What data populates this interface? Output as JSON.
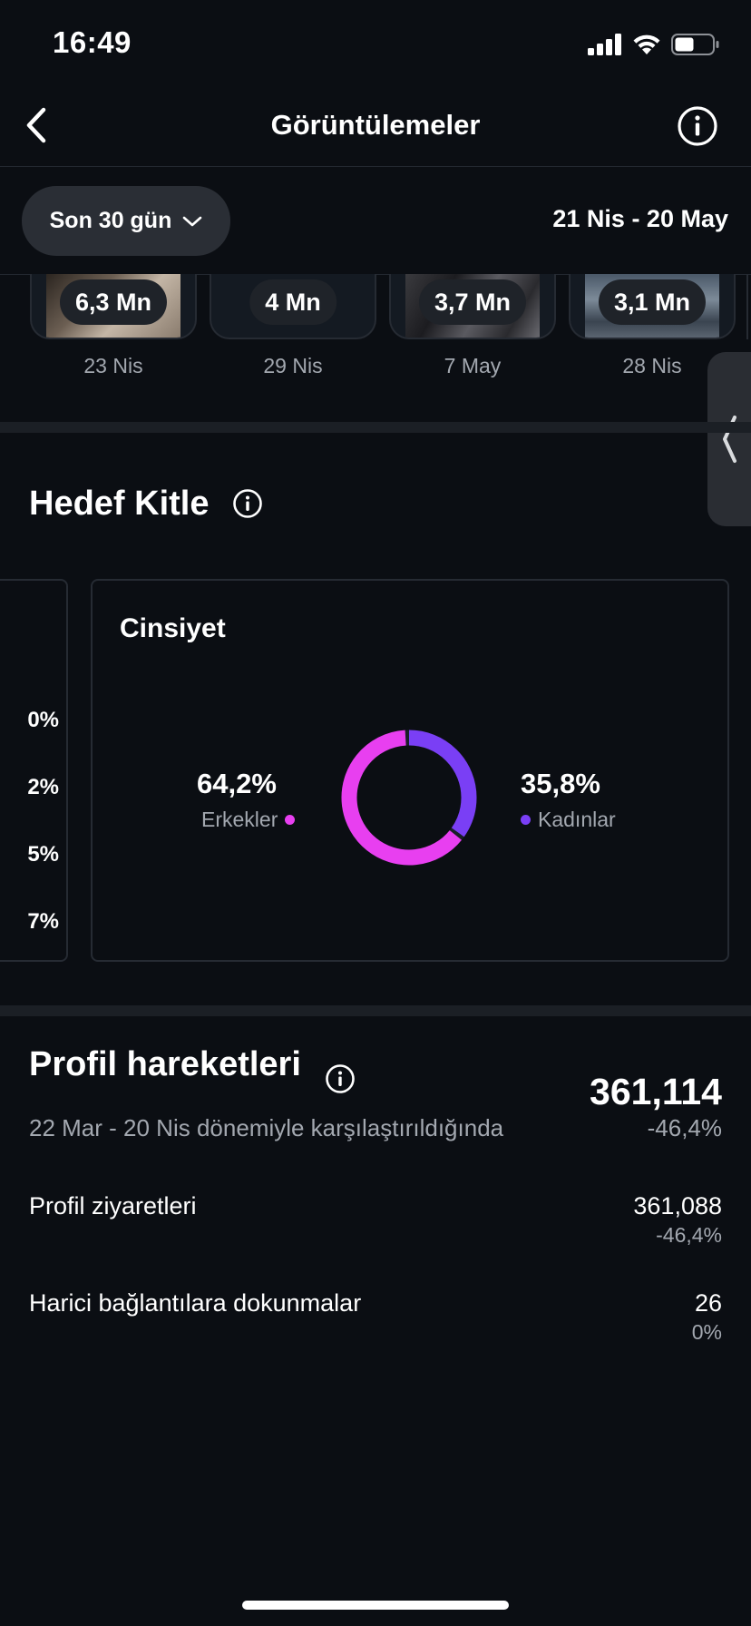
{
  "status_bar": {
    "time": "16:49"
  },
  "header": {
    "title": "Görüntülemeler"
  },
  "filter": {
    "period_label": "Son 30 gün",
    "date_range": "21 Nis - 20 May"
  },
  "thumbnails": [
    {
      "views": "6,3 Mn",
      "date": "23 Nis"
    },
    {
      "views": "4 Mn",
      "date": "29 Nis"
    },
    {
      "views": "3,7 Mn",
      "date": "7 May"
    },
    {
      "views": "3,1 Mn",
      "date": "28 Nis"
    }
  ],
  "audience": {
    "title": "Hedef Kitle",
    "left_card_values": [
      "0%",
      "2%",
      "5%",
      "7%"
    ],
    "gender": {
      "title": "Cinsiyet",
      "men_pct": "64,2%",
      "men_label": "Erkekler",
      "women_pct": "35,8%",
      "women_label": "Kadınlar",
      "men_share": 0.642,
      "women_share": 0.358,
      "men_color": "#e83ff0",
      "women_color": "#7a3ff5"
    }
  },
  "profile_actions": {
    "title": "Profil hareketleri",
    "compare_text": "22 Mar - 20 Nis dönemiyle karşılaştırıldığında",
    "total": "361,114",
    "total_change": "-46,4%",
    "metrics": [
      {
        "label": "Profil ziyaretleri",
        "value": "361,088",
        "change": "-46,4%"
      },
      {
        "label": "Harici bağlantılara dokunmalar",
        "value": "26",
        "change": "0%"
      }
    ]
  }
}
